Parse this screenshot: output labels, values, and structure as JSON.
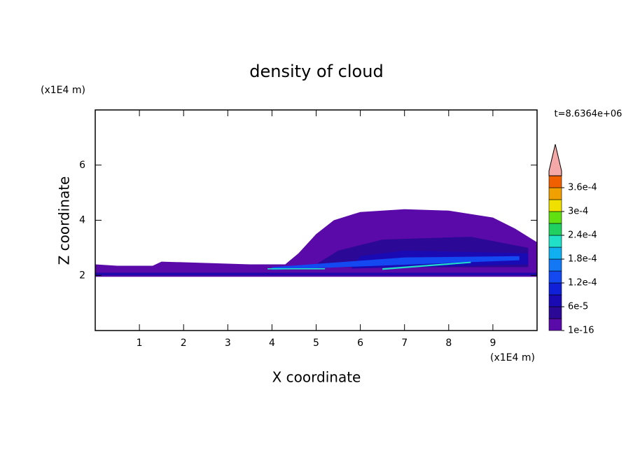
{
  "chart_data": {
    "type": "contour",
    "title": "density of cloud",
    "x_label": "X coordinate",
    "y_label": "Z coordinate",
    "x_unit": "(x1E4 m)",
    "y_unit": "(x1E4 m)",
    "annotation": "t=8.6364e+06",
    "xlim": [
      0,
      10
    ],
    "ylim": [
      0,
      8
    ],
    "xticks": [
      1,
      2,
      3,
      4,
      5,
      6,
      7,
      8,
      9
    ],
    "yticks": [
      2,
      4,
      6
    ],
    "colorbar": {
      "levels": [
        1e-16,
        3e-05,
        6e-05,
        9e-05,
        0.00012,
        0.00015,
        0.00018,
        0.00021,
        0.00024,
        0.00027,
        0.0003,
        0.00033,
        0.00036,
        0.00039
      ],
      "colors": [
        "#5a0aa8",
        "#2c0896",
        "#1a0ab4",
        "#1020d8",
        "#1448f0",
        "#1478f4",
        "#10b0f0",
        "#20e0c8",
        "#20d060",
        "#60e010",
        "#f0e000",
        "#f0a000",
        "#f06000",
        "#f01010"
      ],
      "extend_color": "#f4a8a8",
      "ticks": [
        1e-16,
        {
          "value": 6e-05,
          "label": "6e-5"
        },
        {
          "value": 0.00012,
          "label": "1.2e-4"
        },
        {
          "value": 0.00018,
          "label": "1.8e-4"
        },
        {
          "value": 0.00024,
          "label": "2.4e-4"
        },
        {
          "value": 0.0003,
          "label": "3e-4"
        },
        {
          "value": 0.00036,
          "label": "3.6e-4"
        }
      ]
    },
    "regions": [
      {
        "level": 0,
        "points": [
          [
            0,
            1.95
          ],
          [
            10,
            1.95
          ],
          [
            10,
            3.2
          ],
          [
            9.5,
            3.7
          ],
          [
            9,
            4.1
          ],
          [
            8,
            4.35
          ],
          [
            7,
            4.4
          ],
          [
            6,
            4.3
          ],
          [
            5.4,
            4.0
          ],
          [
            5.0,
            3.5
          ],
          [
            4.6,
            2.8
          ],
          [
            4.3,
            2.4
          ],
          [
            3.5,
            2.4
          ],
          [
            2.5,
            2.45
          ],
          [
            1.5,
            2.5
          ],
          [
            1.3,
            2.35
          ],
          [
            0.5,
            2.35
          ],
          [
            0,
            2.4
          ]
        ]
      },
      {
        "level": 1,
        "points": [
          [
            5.2,
            2.3
          ],
          [
            9.8,
            2.3
          ],
          [
            9.8,
            3.0
          ],
          [
            8.5,
            3.4
          ],
          [
            6.5,
            3.3
          ],
          [
            5.5,
            2.9
          ],
          [
            5,
            2.4
          ]
        ]
      },
      {
        "level": 1,
        "points": [
          [
            0,
            2.0
          ],
          [
            10,
            2.0
          ],
          [
            10,
            2.1
          ],
          [
            0,
            2.1
          ]
        ]
      },
      {
        "level": 2,
        "points": [
          [
            0,
            2.02
          ],
          [
            10,
            2.02
          ],
          [
            10,
            2.08
          ],
          [
            0,
            2.08
          ]
        ]
      },
      {
        "level": 2,
        "points": [
          [
            5.8,
            2.25
          ],
          [
            9.8,
            2.4
          ],
          [
            9.8,
            2.8
          ],
          [
            7,
            2.9
          ],
          [
            6,
            2.7
          ]
        ]
      },
      {
        "level": 4,
        "points": [
          [
            4,
            2.2
          ],
          [
            9.6,
            2.55
          ],
          [
            9.6,
            2.7
          ],
          [
            7,
            2.65
          ],
          [
            4,
            2.3
          ]
        ]
      },
      {
        "level": 7,
        "points": [
          [
            3.9,
            2.22
          ],
          [
            5.2,
            2.22
          ],
          [
            5.2,
            2.26
          ],
          [
            3.9,
            2.26
          ]
        ]
      },
      {
        "level": 7,
        "points": [
          [
            6.5,
            2.2
          ],
          [
            8.5,
            2.45
          ],
          [
            8.5,
            2.5
          ],
          [
            6.5,
            2.26
          ]
        ]
      }
    ]
  }
}
